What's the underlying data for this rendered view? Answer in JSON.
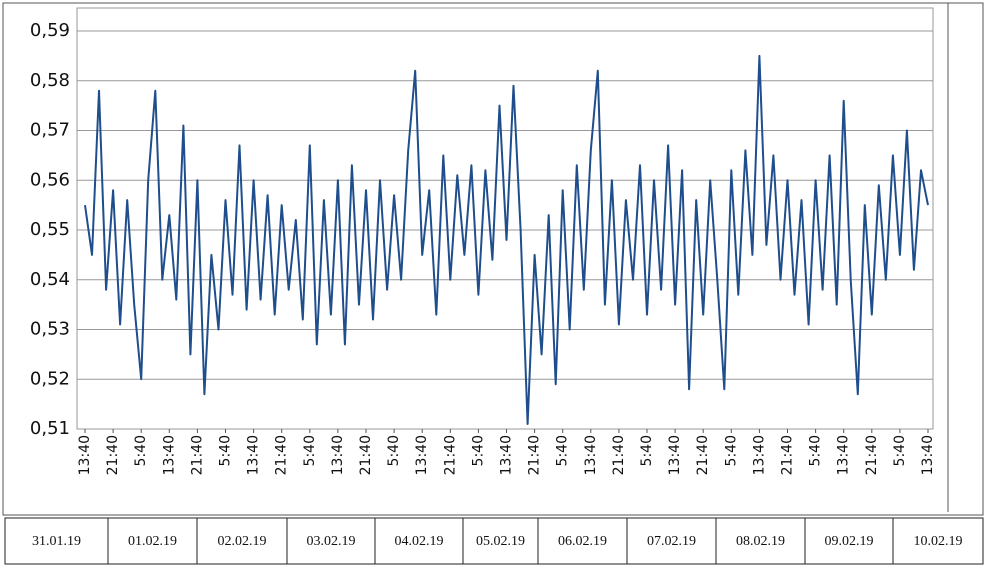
{
  "chart_data": {
    "type": "line",
    "x": [
      0,
      2,
      4,
      6,
      8,
      10,
      12,
      14,
      16,
      18,
      20,
      22,
      24,
      26,
      28,
      30,
      32,
      34,
      36,
      38,
      40,
      42,
      44,
      46,
      48,
      50,
      52,
      54,
      56,
      58,
      60,
      62,
      64,
      66,
      68,
      70,
      72,
      74,
      76,
      78,
      80,
      82,
      84,
      86,
      88,
      90,
      92,
      94,
      96,
      98,
      100,
      102,
      104,
      106,
      108,
      110,
      112,
      114,
      116,
      118,
      120,
      122,
      124,
      126,
      128,
      130,
      132,
      134,
      136,
      138,
      140,
      142,
      144,
      146,
      148,
      150,
      152,
      154,
      156,
      158,
      160,
      162,
      164,
      166,
      168,
      170,
      172,
      174,
      176,
      178,
      180,
      182,
      184,
      186,
      188,
      190,
      192,
      194,
      196,
      198,
      200,
      202,
      204,
      206,
      208,
      210,
      212,
      214,
      216,
      218,
      220,
      222,
      224,
      226,
      228,
      230,
      232,
      234,
      236,
      238,
      240
    ],
    "series": [
      {
        "color": "#1f4e8c",
        "values": [
          0.555,
          0.545,
          0.578,
          0.538,
          0.558,
          0.531,
          0.556,
          0.535,
          0.52,
          0.56,
          0.578,
          0.54,
          0.553,
          0.536,
          0.571,
          0.525,
          0.56,
          0.517,
          0.545,
          0.53,
          0.556,
          0.537,
          0.567,
          0.534,
          0.56,
          0.536,
          0.557,
          0.533,
          0.555,
          0.538,
          0.552,
          0.532,
          0.567,
          0.527,
          0.556,
          0.533,
          0.56,
          0.527,
          0.563,
          0.535,
          0.558,
          0.532,
          0.56,
          0.538,
          0.557,
          0.54,
          0.566,
          0.582,
          0.545,
          0.558,
          0.533,
          0.565,
          0.54,
          0.561,
          0.545,
          0.563,
          0.537,
          0.562,
          0.544,
          0.575,
          0.548,
          0.579,
          0.55,
          0.511,
          0.545,
          0.525,
          0.553,
          0.519,
          0.558,
          0.53,
          0.563,
          0.538,
          0.566,
          0.582,
          0.535,
          0.56,
          0.531,
          0.556,
          0.54,
          0.563,
          0.533,
          0.56,
          0.538,
          0.567,
          0.535,
          0.562,
          0.518,
          0.556,
          0.533,
          0.56,
          0.54,
          0.518,
          0.562,
          0.537,
          0.566,
          0.545,
          0.585,
          0.547,
          0.565,
          0.54,
          0.56,
          0.537,
          0.556,
          0.531,
          0.56,
          0.538,
          0.565,
          0.535,
          0.576,
          0.54,
          0.517,
          0.555,
          0.533,
          0.559,
          0.54,
          0.565,
          0.545,
          0.57,
          0.542,
          0.562,
          0.555
        ]
      }
    ],
    "xlim": [
      0,
      240
    ],
    "xticks": [
      {
        "value": 0,
        "label": "13:40"
      },
      {
        "value": 8,
        "label": "21:40"
      },
      {
        "value": 16,
        "label": "5:40"
      },
      {
        "value": 24,
        "label": "13:40"
      },
      {
        "value": 32,
        "label": "21:40"
      },
      {
        "value": 40,
        "label": "5:40"
      },
      {
        "value": 48,
        "label": "13:40"
      },
      {
        "value": 56,
        "label": "21:40"
      },
      {
        "value": 64,
        "label": "5:40"
      },
      {
        "value": 72,
        "label": "13:40"
      },
      {
        "value": 80,
        "label": "21:40"
      },
      {
        "value": 88,
        "label": "5:40"
      },
      {
        "value": 96,
        "label": "13:40"
      },
      {
        "value": 104,
        "label": "21:40"
      },
      {
        "value": 112,
        "label": "5:40"
      },
      {
        "value": 120,
        "label": "13:40"
      },
      {
        "value": 128,
        "label": "21:40"
      },
      {
        "value": 136,
        "label": "5:40"
      },
      {
        "value": 144,
        "label": "13:40"
      },
      {
        "value": 152,
        "label": "21:40"
      },
      {
        "value": 160,
        "label": "5:40"
      },
      {
        "value": 168,
        "label": "13:40"
      },
      {
        "value": 176,
        "label": "21:40"
      },
      {
        "value": 184,
        "label": "5:40"
      },
      {
        "value": 192,
        "label": "13:40"
      },
      {
        "value": 200,
        "label": "21:40"
      },
      {
        "value": 208,
        "label": "5:40"
      },
      {
        "value": 216,
        "label": "13:40"
      },
      {
        "value": 224,
        "label": "21:40"
      },
      {
        "value": 232,
        "label": "5:40"
      },
      {
        "value": 240,
        "label": "13:40"
      }
    ],
    "ylim": [
      0.51,
      0.59
    ],
    "yticks": [
      {
        "value": 0.51,
        "label": "0,51"
      },
      {
        "value": 0.52,
        "label": "0,52"
      },
      {
        "value": 0.53,
        "label": "0,53"
      },
      {
        "value": 0.54,
        "label": "0,54"
      },
      {
        "value": 0.55,
        "label": "0,55"
      },
      {
        "value": 0.56,
        "label": "0,56"
      },
      {
        "value": 0.57,
        "label": "0,57"
      },
      {
        "value": 0.58,
        "label": "0,58"
      },
      {
        "value": 0.59,
        "label": "0,59"
      }
    ],
    "grid": true,
    "date_row": [
      "31.01.19",
      "01.02.19",
      "02.02.19",
      "03.02.19",
      "04.02.19",
      "05.02.19",
      "06.02.19",
      "07.02.19",
      "08.02.19",
      "09.02.19",
      "10.02.19"
    ]
  }
}
